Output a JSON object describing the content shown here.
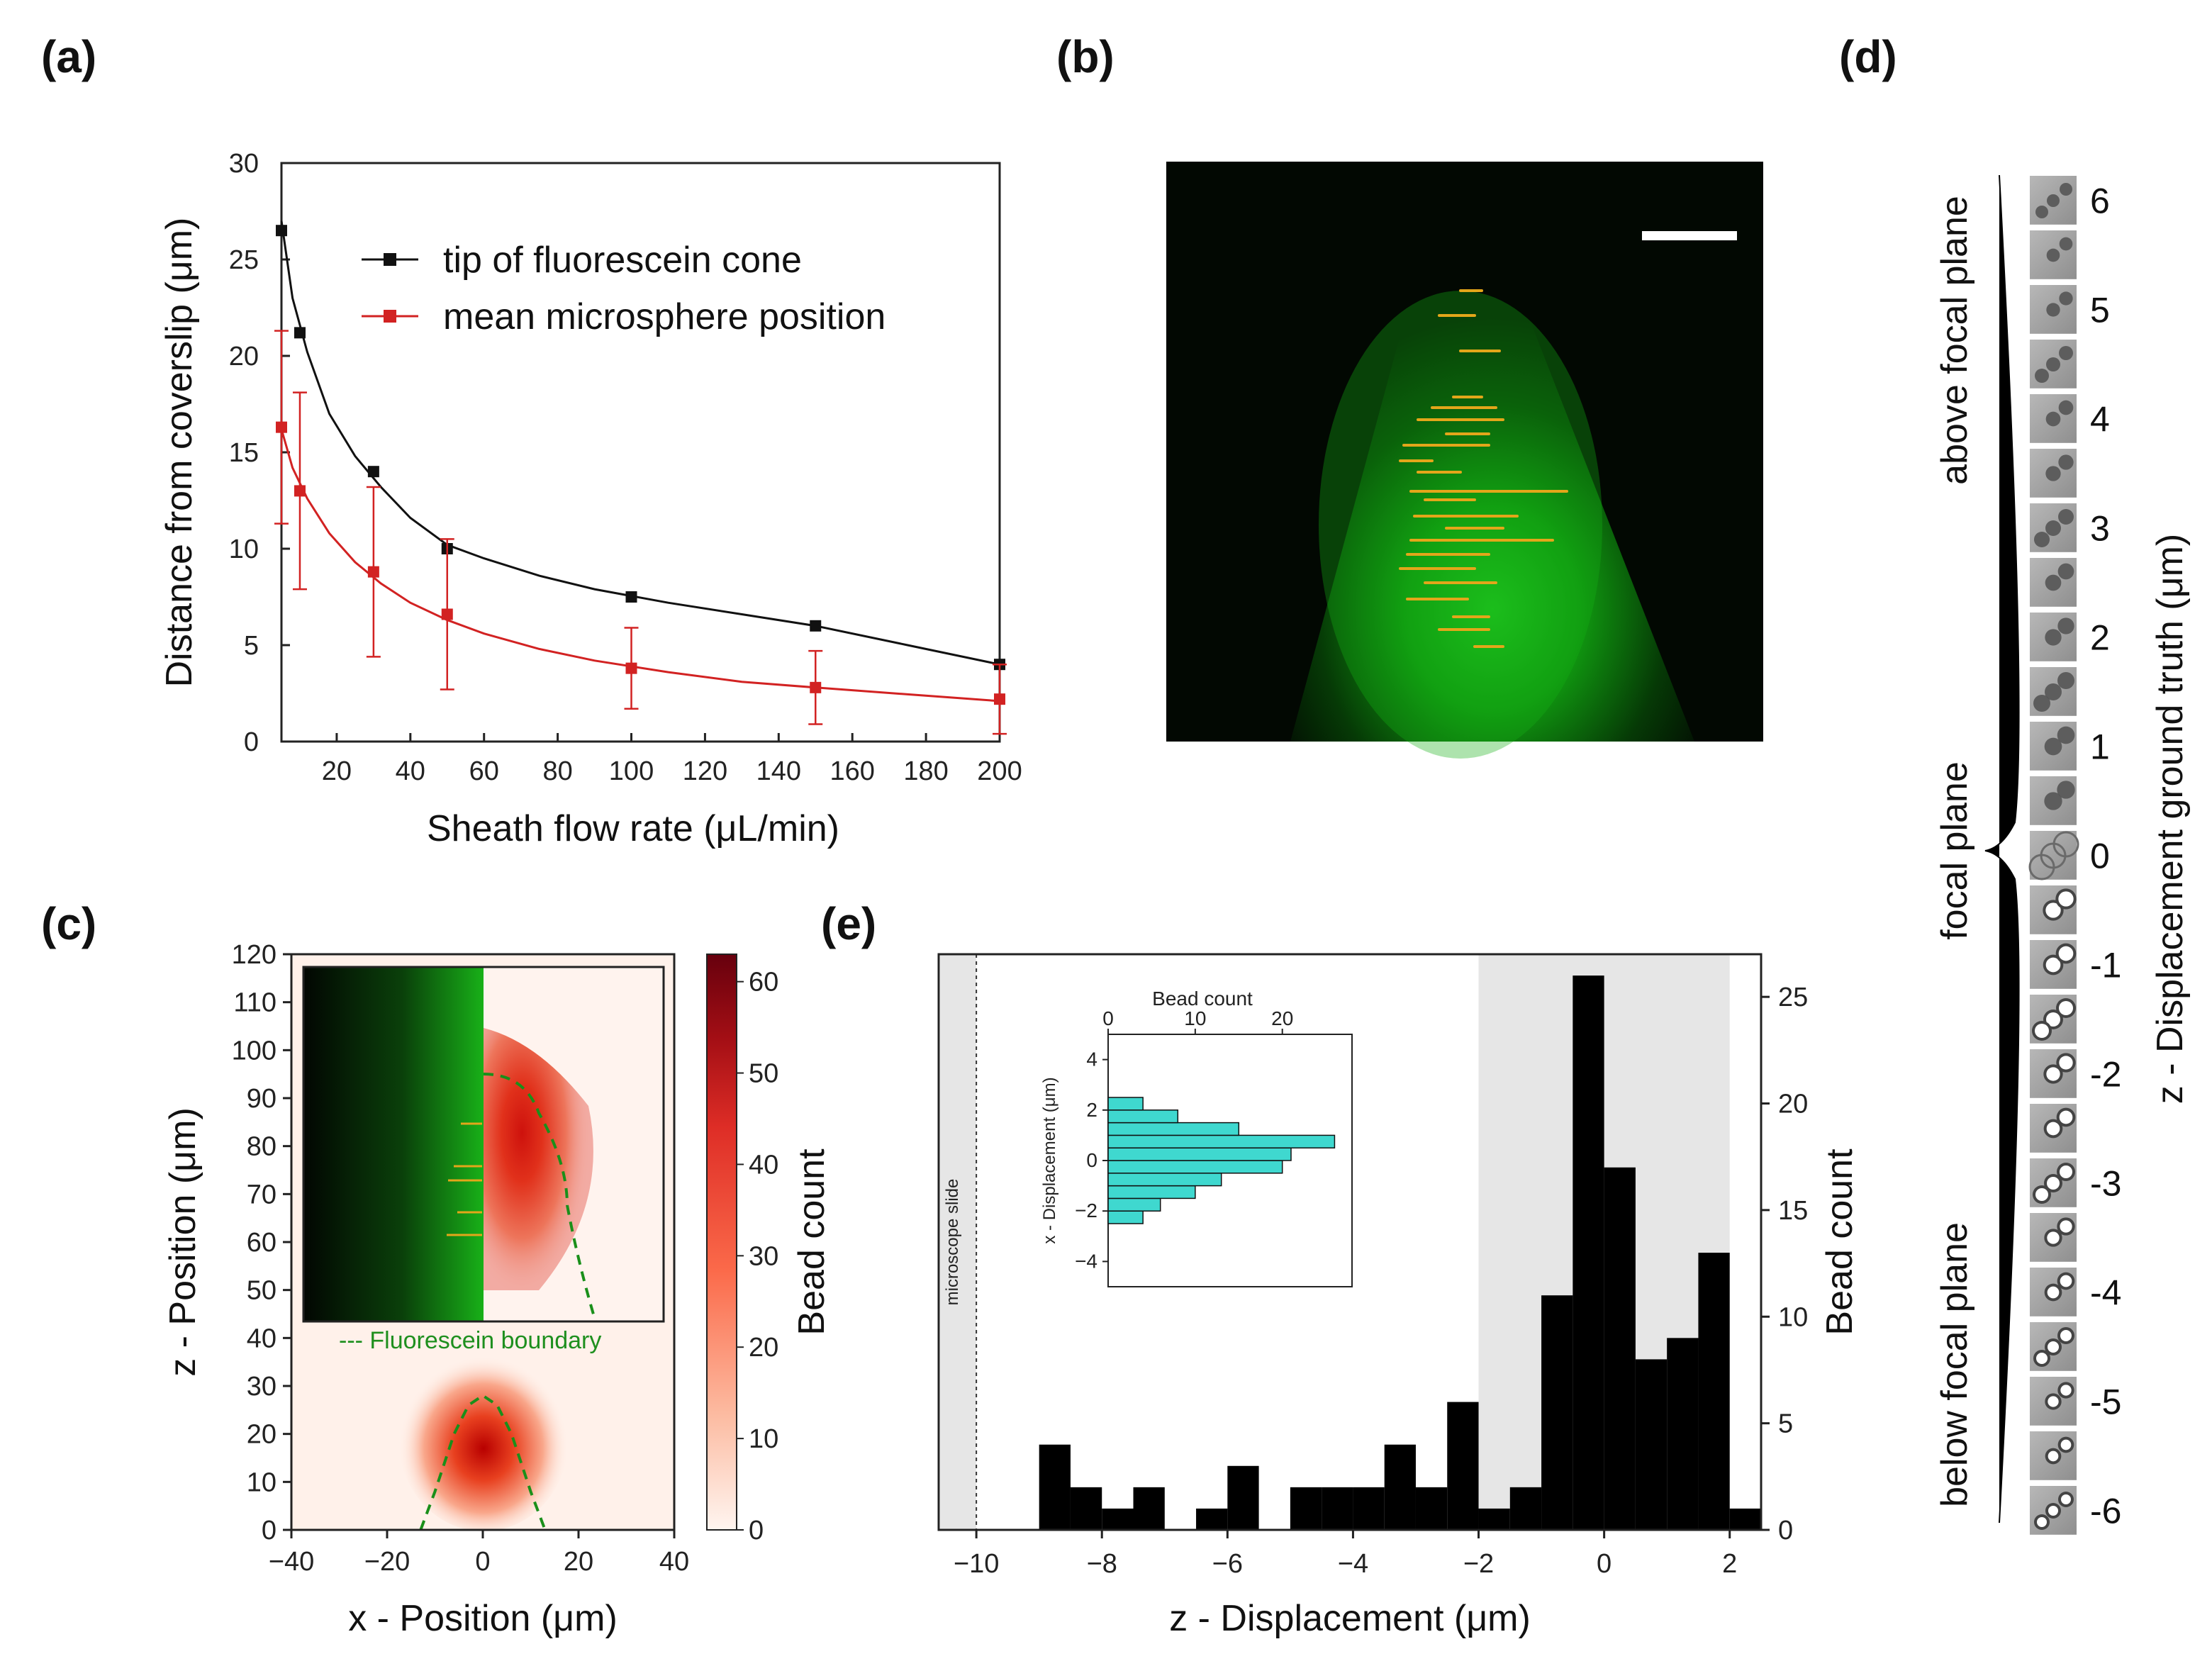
{
  "labels": {
    "a": "(a)",
    "b": "(b)",
    "c": "(c)",
    "d": "(d)",
    "e": "(e)"
  },
  "chart_data": [
    {
      "id": "a",
      "type": "line",
      "xlabel": "Sheath flow rate (μL/min)",
      "ylabel": "Distance from coverslip (μm)",
      "xlim": [
        5,
        200
      ],
      "ylim": [
        0,
        30
      ],
      "xticks": [
        20,
        40,
        60,
        80,
        100,
        120,
        140,
        160,
        180,
        200
      ],
      "yticks": [
        0,
        5,
        10,
        15,
        20,
        25,
        30
      ],
      "series": [
        {
          "name": "tip of fluorescein cone",
          "color": "#111111",
          "x": [
            5,
            10,
            30,
            50,
            100,
            150,
            200
          ],
          "y": [
            26.5,
            21.2,
            14.0,
            10.0,
            7.5,
            6.0,
            4.0
          ],
          "curve_x": [
            5,
            8,
            12,
            18,
            25,
            32,
            40,
            50,
            60,
            75,
            90,
            110,
            130,
            150,
            175,
            200
          ],
          "curve_y": [
            27.0,
            23.0,
            20.2,
            17.0,
            14.8,
            13.2,
            11.6,
            10.2,
            9.5,
            8.6,
            7.9,
            7.2,
            6.6,
            6.0,
            5.0,
            4.0
          ]
        },
        {
          "name": "mean microsphere position",
          "color": "#d22222",
          "x": [
            5,
            10,
            30,
            50,
            100,
            150,
            200
          ],
          "y": [
            16.3,
            13.0,
            8.8,
            6.6,
            3.8,
            2.8,
            2.2
          ],
          "err": [
            5.0,
            5.1,
            4.4,
            3.9,
            2.1,
            1.9,
            1.8
          ],
          "curve_x": [
            5,
            8,
            12,
            18,
            25,
            32,
            40,
            50,
            60,
            75,
            90,
            110,
            130,
            150,
            175,
            200
          ],
          "curve_y": [
            16.2,
            14.2,
            12.6,
            10.8,
            9.3,
            8.2,
            7.2,
            6.3,
            5.6,
            4.8,
            4.2,
            3.6,
            3.1,
            2.8,
            2.45,
            2.1
          ]
        }
      ]
    },
    {
      "id": "c",
      "type": "heatmap",
      "xlabel": "x - Position (μm)",
      "ylabel": "z - Position (μm)",
      "xlim": [
        -40,
        40
      ],
      "ylim": [
        0,
        120
      ],
      "xticks": [
        -40,
        -20,
        0,
        20,
        40
      ],
      "yticks": [
        0,
        10,
        20,
        30,
        40,
        50,
        60,
        70,
        80,
        90,
        100,
        110,
        120
      ],
      "colorbar_label": "Bead count",
      "colorbar_range": [
        0,
        63
      ],
      "colorbar_ticks": [
        0,
        10,
        20,
        30,
        40,
        50,
        60
      ],
      "peak": {
        "x": 0,
        "z": 17
      },
      "boundary_x": [
        -13,
        -10,
        -6,
        -3,
        0,
        3,
        6,
        10,
        13
      ],
      "boundary_z": [
        0,
        8,
        20,
        26,
        28,
        26,
        20,
        8,
        0
      ],
      "inset_annotation": "--- Fluorescein boundary"
    },
    {
      "id": "e",
      "type": "bar",
      "xlabel": "z - Displacement (μm)",
      "ylabel": "Bead count",
      "xlim": [
        -10.6,
        2.5
      ],
      "ylim": [
        0,
        27
      ],
      "xticks": [
        -10,
        -8,
        -6,
        -4,
        -2,
        0,
        2
      ],
      "yticks": [
        0,
        5,
        10,
        15,
        20,
        25
      ],
      "bin_width": 0.5,
      "bin_starts": [
        -9,
        -8.5,
        -8,
        -7.5,
        -7,
        -6.5,
        -6,
        -5.5,
        -5,
        -4.5,
        -4,
        -3.5,
        -3,
        -2.5,
        -2,
        -1.5,
        -1,
        -0.5,
        0,
        0.5,
        1,
        1.5,
        2
      ],
      "values": [
        4,
        2,
        1,
        2,
        0,
        1,
        3,
        0,
        2,
        2,
        2,
        4,
        2,
        6,
        1,
        2,
        11,
        26,
        17,
        8,
        9,
        13,
        1
      ],
      "shaded_region": [
        -2,
        2
      ],
      "slide_label": "microscope slide",
      "slide_position": -10,
      "inset": {
        "type": "bar",
        "orientation": "horizontal",
        "title": "Bead count",
        "ylabel": "x - Displacement (μm)",
        "xlim": [
          0,
          28
        ],
        "ylim": [
          -5,
          5
        ],
        "xticks": [
          0,
          10,
          20
        ],
        "yticks": [
          -4,
          -2,
          0,
          2,
          4
        ],
        "bin_starts": [
          -2.5,
          -2,
          -1.5,
          -1,
          -0.5,
          0,
          0.5,
          1,
          1.5,
          2,
          2.5
        ],
        "values": [
          4,
          6,
          10,
          13,
          20,
          21,
          26,
          15,
          8,
          4,
          0
        ],
        "color": "#3fd8cf"
      }
    }
  ],
  "panel_d": {
    "ylabel": "z - Displacement ground truth (μm)",
    "values": [
      "6",
      "5",
      "4",
      "3",
      "2",
      "1",
      "0",
      "-1",
      "-2",
      "-3",
      "-4",
      "-5",
      "-6"
    ],
    "region_labels": [
      "above focal plane",
      "focal plane",
      "below focal plane"
    ]
  }
}
